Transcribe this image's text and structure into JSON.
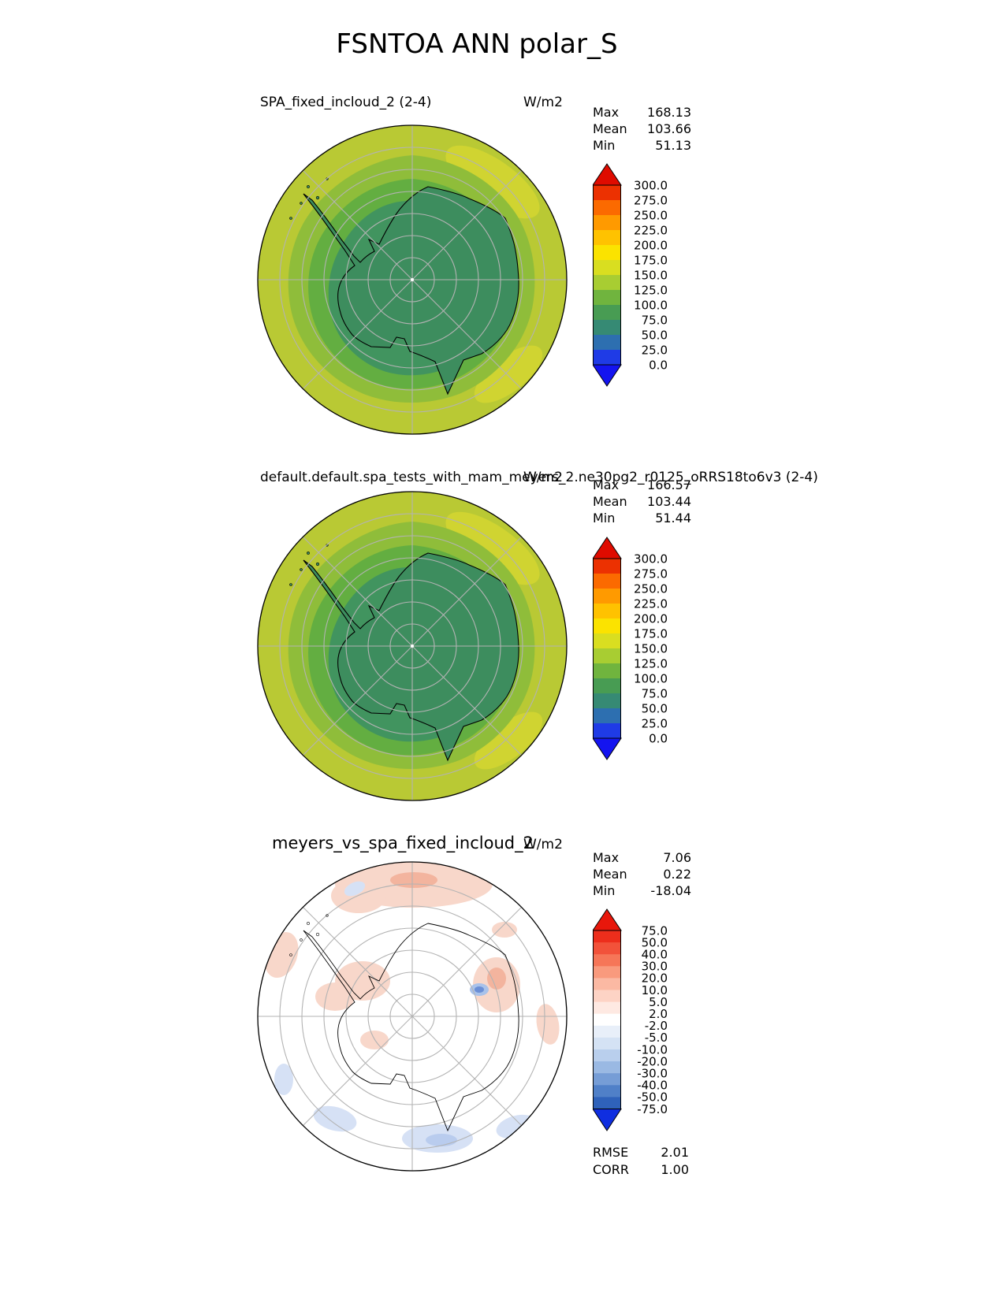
{
  "page": {
    "title": "FSNTOA ANN polar_S"
  },
  "chart_data": [
    {
      "type": "heatmap",
      "subtype": "south_polar_stereographic_contour_map",
      "region": "polar_S",
      "title": "SPA_fixed_incloud_2 (2-4)",
      "units": "W/m2",
      "stats": {
        "max_label": "Max",
        "mean_label": "Mean",
        "min_label": "Min",
        "max": "168.13",
        "mean": "103.66",
        "min": "51.13"
      },
      "contour_levels": [
        0.0,
        25.0,
        50.0,
        75.0,
        100.0,
        125.0,
        150.0,
        175.0,
        200.0,
        225.0,
        250.0,
        275.0,
        300.0
      ],
      "colorbar": {
        "labels": [
          "300.0",
          "275.0",
          "250.0",
          "225.0",
          "200.0",
          "175.0",
          "150.0",
          "125.0",
          "100.0",
          "75.0",
          "50.0",
          "25.0",
          "0.0"
        ],
        "segment_colors": [
          "#ec3101",
          "#fb6a00",
          "#ff9a00",
          "#ffc200",
          "#fbe300",
          "#d9de20",
          "#a8cd32",
          "#70b43e",
          "#489c53",
          "#368a74",
          "#2d6fb0",
          "#1f3be6"
        ],
        "over_color": "#df0b00",
        "under_color": "#1414f0"
      },
      "map_palette": {
        "outer": "#b9c934",
        "outer_hi": "#d0d431",
        "band_150": "#8fbd3a",
        "band_125": "#63ae41",
        "band_100": "#41945f",
        "land": "#3d8d5e",
        "coast": "#000000",
        "grid": "#b3b3b3"
      }
    },
    {
      "type": "heatmap",
      "subtype": "south_polar_stereographic_contour_map",
      "region": "polar_S",
      "title": "default.default.spa_tests_with_mam_meyers_2.ne30pg2_r0125_oRRS18to6v3 (2-4)",
      "units": "W/m2",
      "stats": {
        "max_label": "Max",
        "mean_label": "Mean",
        "min_label": "Min",
        "max": "166.57",
        "mean": "103.44",
        "min": "51.44"
      },
      "contour_levels": [
        0.0,
        25.0,
        50.0,
        75.0,
        100.0,
        125.0,
        150.0,
        175.0,
        200.0,
        225.0,
        250.0,
        275.0,
        300.0
      ],
      "colorbar": {
        "labels": [
          "300.0",
          "275.0",
          "250.0",
          "225.0",
          "200.0",
          "175.0",
          "150.0",
          "125.0",
          "100.0",
          "75.0",
          "50.0",
          "25.0",
          "0.0"
        ],
        "segment_colors": [
          "#ec3101",
          "#fb6a00",
          "#ff9a00",
          "#ffc200",
          "#fbe300",
          "#d9de20",
          "#a8cd32",
          "#70b43e",
          "#489c53",
          "#368a74",
          "#2d6fb0",
          "#1f3be6"
        ],
        "over_color": "#df0b00",
        "under_color": "#1414f0"
      },
      "map_palette": {
        "outer": "#b9c934",
        "outer_hi": "#d0d431",
        "band_150": "#8fbd3a",
        "band_125": "#63ae41",
        "band_100": "#41945f",
        "land": "#3d8d5e",
        "coast": "#000000",
        "grid": "#b3b3b3"
      }
    },
    {
      "type": "heatmap",
      "subtype": "south_polar_stereographic_contour_map_difference",
      "region": "polar_S",
      "title": "meyers_vs_spa_fixed_incloud_2",
      "units": "W/m2",
      "stats": {
        "max_label": "Max",
        "mean_label": "Mean",
        "min_label": "Min",
        "max": "7.06",
        "mean": "0.22",
        "min": "-18.04"
      },
      "metrics": {
        "rmse_label": "RMSE",
        "rmse": "2.01",
        "corr_label": "CORR",
        "corr": "1.00"
      },
      "contour_levels": [
        -75.0,
        -50.0,
        -40.0,
        -30.0,
        -20.0,
        -10.0,
        -5.0,
        -2.0,
        2.0,
        5.0,
        10.0,
        20.0,
        30.0,
        40.0,
        50.0,
        75.0
      ],
      "colorbar": {
        "labels": [
          "75.0",
          "50.0",
          "40.0",
          "30.0",
          "20.0",
          "10.0",
          "5.0",
          "2.0",
          "-2.0",
          "-5.0",
          "-10.0",
          "-20.0",
          "-30.0",
          "-40.0",
          "-50.0",
          "-75.0"
        ],
        "segment_colors": [
          "#ed2e1c",
          "#f2523a",
          "#f67658",
          "#f99a7d",
          "#fbb9a3",
          "#fdd3c5",
          "#fee9e2",
          "#ffffff",
          "#e8eff9",
          "#d4e2f4",
          "#b9cfed",
          "#9ab9e3",
          "#769dd6",
          "#5080c8",
          "#2f62ba"
        ],
        "over_color": "#e8170b",
        "under_color": "#0f2ee0"
      },
      "map_palette": {
        "bg": "#ffffff",
        "pos_light": "#f8d7ca",
        "pos_mid": "#f3b49e",
        "neg_light": "#d6e1f5",
        "neg_mid": "#b9ccee",
        "neg_deep": "#6b8fd6",
        "neg_halo": "#a9c2ea",
        "coast": "#000000",
        "grid": "#b3b3b3"
      }
    }
  ]
}
